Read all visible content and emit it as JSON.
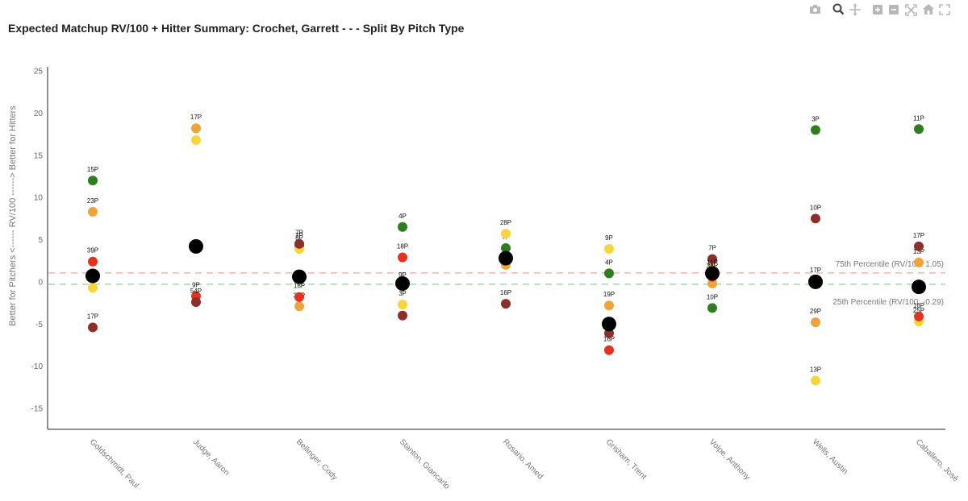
{
  "chart_data": {
    "type": "scatter",
    "title": "Expected Matchup RV/100 + Hitter Summary: Crochet, Garrett - - - Split By Pitch Type",
    "ylabel": "Better for Pitchers <------   RV/100   ------> Better for Hitters",
    "xlabel": "",
    "ylim": [
      -17,
      25
    ],
    "yticks": [
      -15,
      -10,
      -5,
      0,
      5,
      10,
      15,
      20,
      25
    ],
    "categories": [
      "Goldschmidt, Paul",
      "Judge, Aaron",
      "Bellinger, Cody",
      "Stanton, Giancarlo",
      "Rosario, Amed",
      "Grisham, Trent",
      "Volpe, Anthony",
      "Wells, Austin",
      "Caballero, José"
    ],
    "reference_lines": [
      {
        "label": "75th Percentile (RV/100: 1.05)",
        "value": 1.05,
        "color": "#f4a6a6"
      },
      {
        "label": "25th Percentile (RV/100: -0.29)",
        "value": -0.29,
        "color": "#9fcf9f"
      }
    ],
    "series": [
      {
        "name": "Green",
        "color": "#2e7d1f",
        "points": [
          {
            "x": 0,
            "y": 12.0,
            "label": "15P"
          },
          {
            "x": 2,
            "y": 4.2,
            "label": "7P"
          },
          {
            "x": 3,
            "y": 6.5,
            "label": "4P"
          },
          {
            "x": 4,
            "y": 4.0,
            "label": "7P"
          },
          {
            "x": 5,
            "y": 1.0,
            "label": "4P"
          },
          {
            "x": 6,
            "y": -3.1,
            "label": "10P"
          },
          {
            "x": 7,
            "y": 18.0,
            "label": "3P"
          },
          {
            "x": 8,
            "y": 18.1,
            "label": "11P"
          }
        ]
      },
      {
        "name": "Orange",
        "color": "#eea43a",
        "points": [
          {
            "x": 0,
            "y": 8.3,
            "label": "23P"
          },
          {
            "x": 1,
            "y": 18.2,
            "label": "17P"
          },
          {
            "x": 2,
            "y": -2.9,
            "label": "28P"
          },
          {
            "x": 3,
            "y": -0.5,
            "label": "9P"
          },
          {
            "x": 4,
            "y": 2.0,
            "label": ""
          },
          {
            "x": 5,
            "y": -2.8,
            "label": "19P"
          },
          {
            "x": 6,
            "y": -0.2,
            "label": ""
          },
          {
            "x": 7,
            "y": -4.8,
            "label": "29P"
          },
          {
            "x": 8,
            "y": 2.3,
            "label": "13P"
          }
        ]
      },
      {
        "name": "Yellow",
        "color": "#f8d53a",
        "points": [
          {
            "x": 0,
            "y": -0.7,
            "label": ""
          },
          {
            "x": 1,
            "y": 16.8,
            "label": ""
          },
          {
            "x": 2,
            "y": 3.9,
            "label": "8P"
          },
          {
            "x": 3,
            "y": -2.7,
            "label": "3P"
          },
          {
            "x": 4,
            "y": 5.7,
            "label": "28P"
          },
          {
            "x": 5,
            "y": 3.9,
            "label": "9P"
          },
          {
            "x": 6,
            "y": 1.5,
            "label": ""
          },
          {
            "x": 7,
            "y": -11.7,
            "label": "13P"
          },
          {
            "x": 8,
            "y": -4.7,
            "label": "25P"
          }
        ]
      },
      {
        "name": "Red",
        "color": "#e3321e",
        "points": [
          {
            "x": 0,
            "y": 2.4,
            "label": "39P"
          },
          {
            "x": 1,
            "y": -1.7,
            "label": "9P"
          },
          {
            "x": 2,
            "y": -1.8,
            "label": "16P"
          },
          {
            "x": 3,
            "y": 2.9,
            "label": "18P"
          },
          {
            "x": 5,
            "y": -8.1,
            "label": "16P"
          },
          {
            "x": 6,
            "y": 0.6,
            "label": "38P"
          },
          {
            "x": 7,
            "y": 0.1,
            "label": "17P"
          },
          {
            "x": 8,
            "y": -4.1,
            "label": "16P"
          }
        ]
      },
      {
        "name": "Dark Red",
        "color": "#8c2e2a",
        "points": [
          {
            "x": 0,
            "y": -5.4,
            "label": "17P"
          },
          {
            "x": 1,
            "y": -2.4,
            "label": "54P"
          },
          {
            "x": 2,
            "y": 4.5,
            "label": "7P"
          },
          {
            "x": 3,
            "y": -4.0,
            "label": ""
          },
          {
            "x": 4,
            "y": -2.6,
            "label": "16P"
          },
          {
            "x": 5,
            "y": -6.1,
            "label": ""
          },
          {
            "x": 6,
            "y": 2.7,
            "label": "7P"
          },
          {
            "x": 7,
            "y": 7.5,
            "label": "10P"
          },
          {
            "x": 8,
            "y": 4.2,
            "label": "17P"
          }
        ]
      },
      {
        "name": "Summary",
        "color": "#000000",
        "points": [
          {
            "x": 0,
            "y": 0.7,
            "label": ""
          },
          {
            "x": 1,
            "y": 4.2,
            "label": ""
          },
          {
            "x": 2,
            "y": 0.6,
            "label": ""
          },
          {
            "x": 3,
            "y": -0.2,
            "label": ""
          },
          {
            "x": 4,
            "y": 2.8,
            "label": ""
          },
          {
            "x": 5,
            "y": -5.0,
            "label": ""
          },
          {
            "x": 6,
            "y": 1.0,
            "label": "11P"
          },
          {
            "x": 7,
            "y": 0.0,
            "label": ""
          },
          {
            "x": 8,
            "y": -0.6,
            "label": ""
          }
        ]
      }
    ]
  },
  "modebar": {
    "icons": [
      "camera-icon",
      "zoom-icon",
      "pan-icon",
      "zoom-in-icon",
      "zoom-out-icon",
      "autoscale-icon",
      "reset-axes-icon",
      "fullscreen-icon"
    ]
  }
}
